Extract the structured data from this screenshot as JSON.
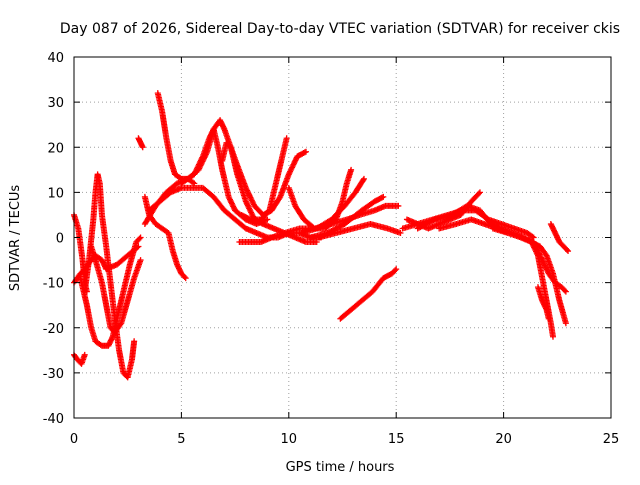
{
  "chart_data": {
    "type": "scatter",
    "title": "Day 087 of 2026, Sidereal Day-to-day VTEC variation (SDTVAR) for receiver ckis",
    "xlabel": "GPS time / hours",
    "ylabel": "SDTVAR / TECUs",
    "xlim": [
      0,
      25
    ],
    "ylim": [
      -40,
      40
    ],
    "x_ticks": [
      0,
      5,
      10,
      15,
      20,
      25
    ],
    "y_ticks": [
      -40,
      -30,
      -20,
      -10,
      0,
      10,
      20,
      30,
      40
    ],
    "x_tick_labels": [
      "0",
      "5",
      "10",
      "15",
      "20",
      "25"
    ],
    "y_tick_labels": [
      "-40",
      "-30",
      "-20",
      "-10",
      "0",
      "10",
      "20",
      "30",
      "40"
    ],
    "grid": true,
    "marker": "+",
    "color": "#ff0000",
    "series": [
      {
        "name": "s01",
        "points": [
          [
            0.0,
            5
          ],
          [
            0.2,
            2
          ],
          [
            0.4,
            -5
          ],
          [
            0.5,
            -10
          ],
          [
            0.6,
            -12
          ]
        ]
      },
      {
        "name": "s02",
        "points": [
          [
            0.0,
            -26
          ],
          [
            0.15,
            -27
          ],
          [
            0.35,
            -28
          ],
          [
            0.5,
            -26
          ]
        ]
      },
      {
        "name": "s03",
        "points": [
          [
            0.0,
            -10
          ],
          [
            0.3,
            -8
          ],
          [
            0.5,
            -7
          ],
          [
            0.8,
            -5
          ],
          [
            1.0,
            -4
          ],
          [
            1.3,
            -5
          ],
          [
            1.5,
            -7
          ],
          [
            2.0,
            -6
          ],
          [
            2.5,
            -4
          ],
          [
            3.0,
            -2
          ]
        ]
      },
      {
        "name": "s04",
        "points": [
          [
            0.3,
            -9
          ],
          [
            0.6,
            -15
          ],
          [
            0.8,
            -20
          ],
          [
            1.0,
            -23
          ],
          [
            1.3,
            -24
          ],
          [
            1.6,
            -24
          ],
          [
            1.8,
            -22
          ],
          [
            2.0,
            -18
          ],
          [
            2.3,
            -12
          ],
          [
            2.6,
            -6
          ],
          [
            2.9,
            -1
          ],
          [
            3.1,
            0
          ]
        ]
      },
      {
        "name": "s05",
        "points": [
          [
            0.5,
            -12
          ],
          [
            0.7,
            -5
          ],
          [
            0.9,
            4
          ],
          [
            1.0,
            10
          ],
          [
            1.1,
            14
          ],
          [
            1.2,
            12
          ],
          [
            1.3,
            5
          ],
          [
            1.5,
            -2
          ],
          [
            1.7,
            -10
          ],
          [
            1.9,
            -18
          ],
          [
            2.1,
            -25
          ],
          [
            2.3,
            -30
          ],
          [
            2.5,
            -31
          ],
          [
            2.7,
            -27
          ],
          [
            2.8,
            -23
          ]
        ]
      },
      {
        "name": "s06",
        "points": [
          [
            0.8,
            -2
          ],
          [
            1.0,
            -5
          ],
          [
            1.3,
            -10
          ],
          [
            1.5,
            -15
          ],
          [
            1.7,
            -20
          ],
          [
            1.9,
            -21
          ],
          [
            2.2,
            -19
          ],
          [
            2.5,
            -14
          ],
          [
            2.8,
            -9
          ],
          [
            3.1,
            -5
          ]
        ]
      },
      {
        "name": "s07",
        "points": [
          [
            3.0,
            22
          ],
          [
            3.1,
            21
          ],
          [
            3.2,
            20
          ]
        ]
      },
      {
        "name": "s08",
        "points": [
          [
            3.3,
            9
          ],
          [
            3.5,
            5
          ],
          [
            3.8,
            3
          ],
          [
            4.1,
            2
          ],
          [
            4.4,
            1
          ],
          [
            4.6,
            -3
          ],
          [
            4.8,
            -6
          ],
          [
            5.0,
            -8
          ],
          [
            5.2,
            -9
          ]
        ]
      },
      {
        "name": "s09",
        "points": [
          [
            3.9,
            32
          ],
          [
            4.1,
            28
          ],
          [
            4.3,
            22
          ],
          [
            4.5,
            17
          ],
          [
            4.7,
            14
          ],
          [
            5.0,
            13
          ],
          [
            5.3,
            13
          ],
          [
            5.6,
            12
          ]
        ]
      },
      {
        "name": "s10",
        "points": [
          [
            3.3,
            3
          ],
          [
            3.8,
            7
          ],
          [
            4.3,
            10
          ],
          [
            4.8,
            12
          ],
          [
            5.3,
            13
          ],
          [
            5.8,
            15
          ],
          [
            6.2,
            19
          ],
          [
            6.5,
            24
          ],
          [
            6.8,
            26
          ],
          [
            7.0,
            24
          ],
          [
            7.3,
            20
          ],
          [
            7.6,
            14
          ],
          [
            8.0,
            8
          ],
          [
            8.4,
            4
          ],
          [
            8.8,
            3
          ],
          [
            9.3,
            2
          ],
          [
            9.8,
            1
          ],
          [
            10.3,
            0
          ],
          [
            10.8,
            -1
          ],
          [
            11.3,
            -1
          ]
        ]
      },
      {
        "name": "s11",
        "points": [
          [
            3.5,
            6
          ],
          [
            4.0,
            8
          ],
          [
            4.5,
            10
          ],
          [
            5.0,
            11
          ],
          [
            5.5,
            11
          ],
          [
            6.0,
            11
          ],
          [
            6.5,
            9
          ],
          [
            7.0,
            6
          ],
          [
            7.5,
            4
          ],
          [
            8.0,
            2
          ],
          [
            8.5,
            1
          ],
          [
            9.0,
            0
          ],
          [
            9.5,
            0
          ],
          [
            10.0,
            1
          ],
          [
            10.5,
            1
          ],
          [
            11.0,
            0
          ],
          [
            11.5,
            0
          ]
        ]
      },
      {
        "name": "s12",
        "points": [
          [
            5.0,
            12
          ],
          [
            5.3,
            13
          ],
          [
            5.6,
            14
          ],
          [
            6.0,
            18
          ],
          [
            6.3,
            22
          ],
          [
            6.5,
            24
          ],
          [
            6.7,
            20
          ],
          [
            6.9,
            15
          ],
          [
            7.2,
            9
          ],
          [
            7.5,
            6
          ],
          [
            8.0,
            4
          ],
          [
            8.5,
            3
          ],
          [
            9.0,
            4
          ]
        ]
      },
      {
        "name": "s13",
        "points": [
          [
            6.9,
            17
          ],
          [
            7.1,
            21
          ],
          [
            7.3,
            20
          ],
          [
            7.6,
            16
          ],
          [
            8.0,
            11
          ],
          [
            8.4,
            7
          ],
          [
            8.8,
            5
          ],
          [
            9.2,
            6
          ],
          [
            9.6,
            9
          ],
          [
            10.0,
            14
          ],
          [
            10.4,
            18
          ],
          [
            10.8,
            19
          ]
        ]
      },
      {
        "name": "s14",
        "points": [
          [
            7.8,
            5
          ],
          [
            8.2,
            4
          ],
          [
            8.7,
            4
          ],
          [
            9.1,
            6
          ],
          [
            9.4,
            12
          ],
          [
            9.7,
            18
          ],
          [
            9.9,
            22
          ]
        ]
      },
      {
        "name": "s15",
        "points": [
          [
            7.7,
            -1
          ],
          [
            8.2,
            -1
          ],
          [
            8.7,
            -1
          ],
          [
            9.2,
            0
          ],
          [
            9.8,
            1
          ],
          [
            10.5,
            2
          ],
          [
            11.2,
            2
          ],
          [
            12.0,
            3
          ],
          [
            12.7,
            4
          ],
          [
            13.3,
            5
          ],
          [
            14.0,
            6
          ],
          [
            14.5,
            7
          ],
          [
            15.1,
            7
          ]
        ]
      },
      {
        "name": "s16",
        "points": [
          [
            10.0,
            11
          ],
          [
            10.3,
            7
          ],
          [
            10.7,
            4
          ],
          [
            11.2,
            2
          ],
          [
            11.7,
            2
          ],
          [
            12.2,
            4
          ],
          [
            12.5,
            8
          ],
          [
            12.7,
            12
          ],
          [
            12.9,
            15
          ]
        ]
      },
      {
        "name": "s17",
        "points": [
          [
            10.6,
            1
          ],
          [
            11.3,
            2
          ],
          [
            12.0,
            4
          ],
          [
            12.6,
            7
          ],
          [
            13.1,
            10
          ],
          [
            13.5,
            13
          ]
        ]
      },
      {
        "name": "s18",
        "points": [
          [
            11.0,
            0
          ],
          [
            11.8,
            1
          ],
          [
            12.6,
            3
          ],
          [
            13.4,
            6
          ],
          [
            14.0,
            8
          ],
          [
            14.4,
            9
          ]
        ]
      },
      {
        "name": "s19",
        "points": [
          [
            11.4,
            0
          ],
          [
            12.2,
            1
          ],
          [
            13.0,
            2
          ],
          [
            13.8,
            3
          ],
          [
            14.6,
            2
          ],
          [
            15.2,
            1
          ]
        ]
      },
      {
        "name": "s20",
        "points": [
          [
            12.4,
            -18
          ],
          [
            12.9,
            -16
          ],
          [
            13.4,
            -14
          ],
          [
            13.9,
            -12
          ],
          [
            14.4,
            -9
          ],
          [
            14.8,
            -8
          ],
          [
            15.0,
            -7
          ]
        ]
      },
      {
        "name": "s21",
        "points": [
          [
            15.3,
            2
          ],
          [
            16.0,
            3
          ],
          [
            16.7,
            4
          ],
          [
            17.4,
            5
          ],
          [
            18.1,
            6
          ],
          [
            18.7,
            6
          ],
          [
            19.3,
            4
          ],
          [
            19.9,
            3
          ],
          [
            20.5,
            2
          ],
          [
            21.1,
            1
          ],
          [
            21.4,
            0
          ]
        ]
      },
      {
        "name": "s22",
        "points": [
          [
            15.5,
            4
          ],
          [
            16.0,
            3
          ],
          [
            16.5,
            2
          ],
          [
            17.0,
            3
          ],
          [
            17.5,
            4
          ],
          [
            18.0,
            5
          ],
          [
            18.5,
            8
          ],
          [
            18.9,
            10
          ]
        ]
      },
      {
        "name": "s23",
        "points": [
          [
            16.0,
            2
          ],
          [
            16.8,
            4
          ],
          [
            17.6,
            5
          ],
          [
            18.3,
            7
          ],
          [
            18.9,
            6
          ],
          [
            19.4,
            3
          ],
          [
            19.9,
            2
          ],
          [
            20.4,
            1
          ],
          [
            20.9,
            0
          ],
          [
            21.4,
            -1
          ]
        ]
      },
      {
        "name": "s24",
        "points": [
          [
            17.0,
            2
          ],
          [
            17.8,
            3
          ],
          [
            18.5,
            4
          ],
          [
            19.1,
            3
          ],
          [
            19.7,
            2
          ],
          [
            20.2,
            1
          ]
        ]
      },
      {
        "name": "s25",
        "points": [
          [
            19.5,
            2
          ],
          [
            20.2,
            1
          ],
          [
            20.8,
            0
          ],
          [
            21.3,
            -1
          ],
          [
            21.7,
            -2
          ],
          [
            22.0,
            -4
          ],
          [
            22.3,
            -8
          ],
          [
            22.6,
            -14
          ],
          [
            22.9,
            -19
          ]
        ]
      },
      {
        "name": "s26",
        "points": [
          [
            21.3,
            -1
          ],
          [
            21.6,
            -4
          ],
          [
            21.8,
            -9
          ],
          [
            22.0,
            -14
          ],
          [
            22.2,
            -19
          ],
          [
            22.3,
            -22
          ]
        ]
      },
      {
        "name": "s27",
        "points": [
          [
            21.5,
            -2
          ],
          [
            21.8,
            -5
          ],
          [
            22.1,
            -8
          ],
          [
            22.4,
            -10
          ],
          [
            22.7,
            -11
          ],
          [
            22.9,
            -12
          ]
        ]
      },
      {
        "name": "s28",
        "points": [
          [
            21.6,
            -11
          ],
          [
            21.8,
            -14
          ],
          [
            22.0,
            -16
          ],
          [
            22.1,
            -18
          ]
        ]
      },
      {
        "name": "s29",
        "points": [
          [
            22.2,
            3
          ],
          [
            22.4,
            1
          ],
          [
            22.6,
            -1
          ],
          [
            22.8,
            -2
          ],
          [
            23.0,
            -3
          ]
        ]
      }
    ]
  }
}
